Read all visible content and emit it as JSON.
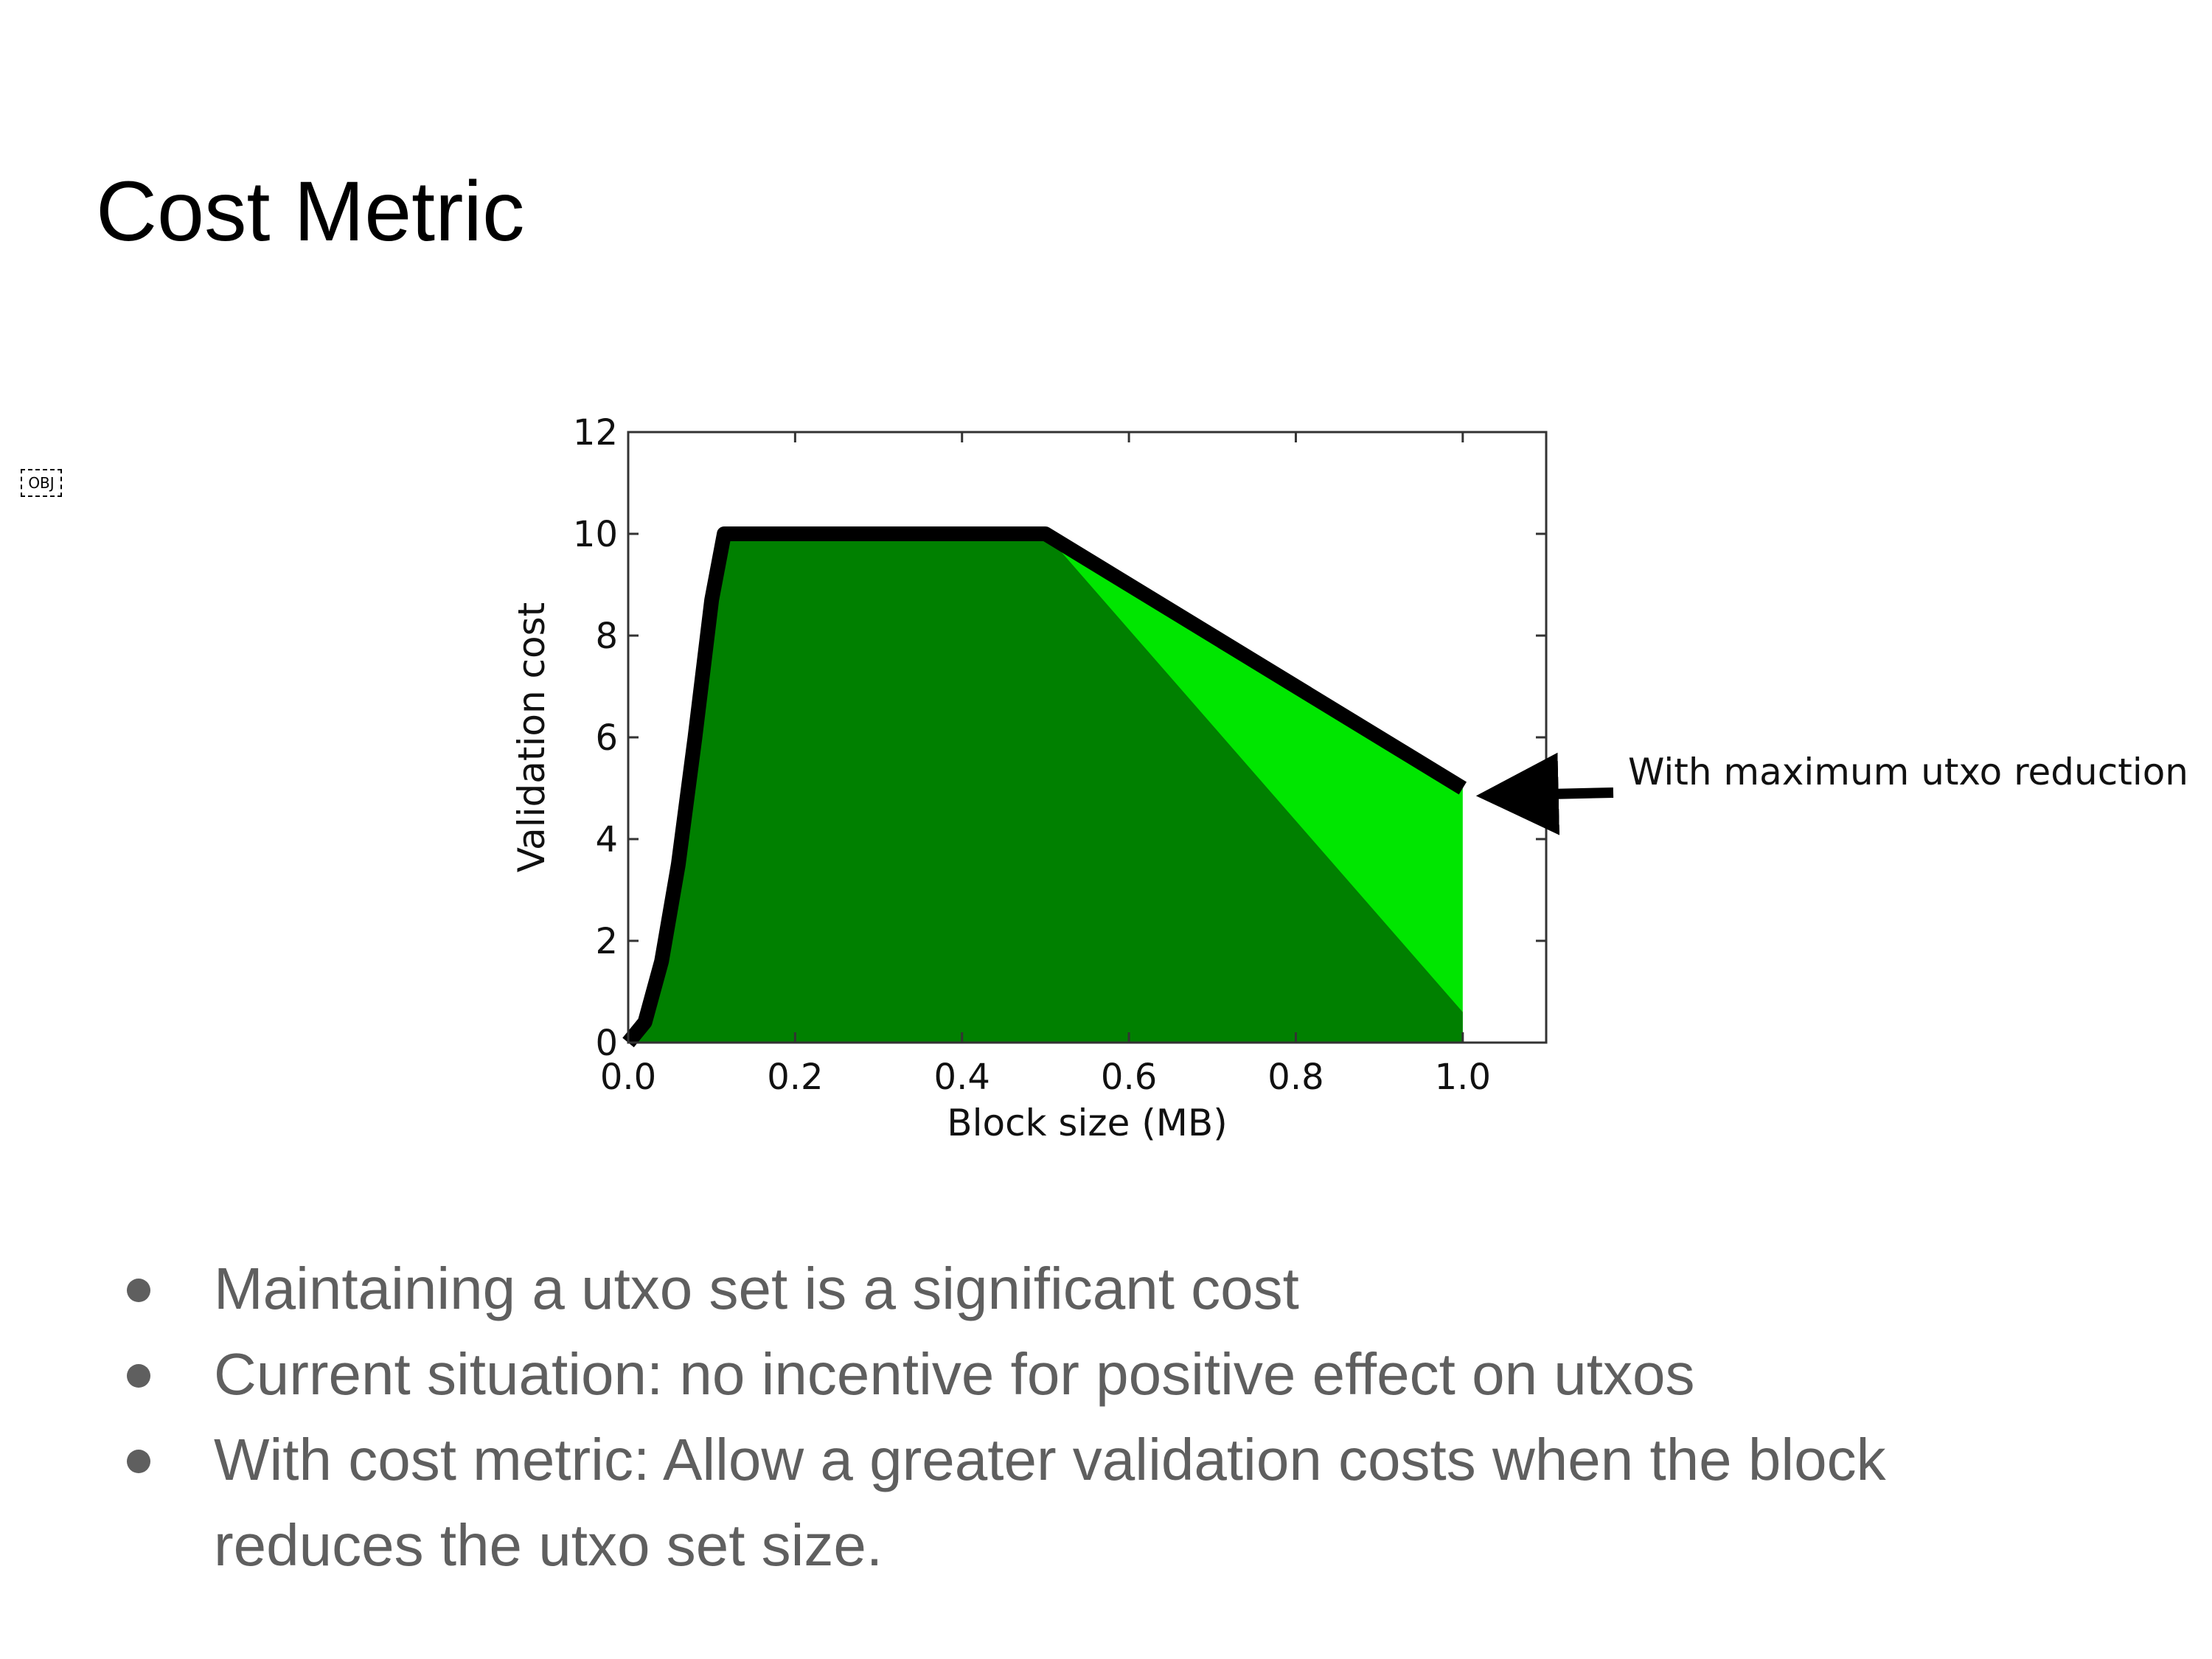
{
  "slide": {
    "title": "Cost Metric",
    "object_marker": "OBJ",
    "bullets": [
      "Maintaining a utxo set is a significant cost",
      "Current situation: no incentive for positive effect on utxos",
      "With cost metric: Allow a greater validation costs when the block reduces the utxo set size."
    ]
  },
  "chart_data": {
    "type": "area",
    "title": "",
    "xlabel": "Block size (MB)",
    "ylabel": "Validation cost",
    "xlim": [
      0.0,
      1.1
    ],
    "ylim": [
      0,
      12
    ],
    "xticks": [
      "0.0",
      "0.2",
      "0.4",
      "0.6",
      "0.8",
      "1.0"
    ],
    "yticks": [
      "0",
      "2",
      "4",
      "6",
      "8",
      "10",
      "12"
    ],
    "grid": false,
    "legend": false,
    "series": [
      {
        "role": "max-cost-line",
        "x": [
          0.0,
          0.02,
          0.04,
          0.06,
          0.08,
          0.1,
          0.115,
          0.13,
          0.5,
          1.0
        ],
        "y": [
          0,
          0.4,
          1.6,
          3.5,
          6.0,
          8.7,
          10.0,
          10.0,
          10.0,
          5.0
        ]
      },
      {
        "role": "area-with-utxo-reduction",
        "x": [
          0.5,
          1.0
        ],
        "y": [
          10.0,
          5.0
        ]
      },
      {
        "role": "area-base",
        "x": [
          0.0,
          0.02,
          0.04,
          0.06,
          0.08,
          0.1,
          0.115,
          0.13,
          0.5,
          1.0
        ],
        "y": [
          0,
          0.4,
          1.6,
          3.5,
          6.0,
          8.7,
          10.0,
          10.0,
          10.0,
          0.6
        ]
      }
    ],
    "annotation": {
      "text": "With maximum utxo reduction",
      "x": 1.0,
      "y": 5.0
    },
    "colors": {
      "base_fill": "#008000",
      "reduction_fill": "#00e600",
      "line": "#000000",
      "axes": "#333333"
    }
  }
}
